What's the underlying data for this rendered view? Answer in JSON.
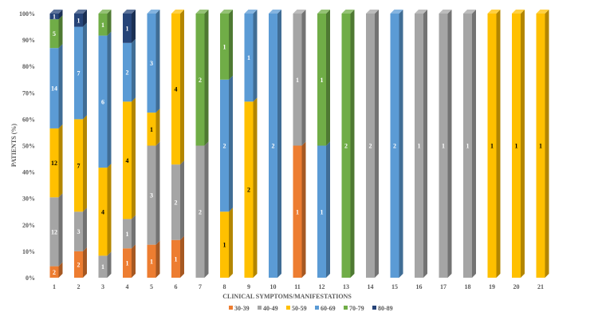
{
  "chart_data": {
    "type": "bar",
    "stacked": "percent",
    "style": "3d-column",
    "xlabel": "CLINICAL SYMPTOMS/MANIFESTATIONS",
    "ylabel": "PATIENTS (%)",
    "ylim": [
      0,
      100
    ],
    "yticks": [
      "0%",
      "10%",
      "20%",
      "30%",
      "40%",
      "50%",
      "60%",
      "70%",
      "80%",
      "90%",
      "100%"
    ],
    "grid": false,
    "legend_position": "bottom",
    "categories": [
      "1",
      "2",
      "3",
      "4",
      "5",
      "6",
      "7",
      "8",
      "9",
      "10",
      "11",
      "12",
      "13",
      "14",
      "15",
      "16",
      "17",
      "18",
      "19",
      "20",
      "21"
    ],
    "series": [
      {
        "name": "30-39",
        "color": "#ED7D31",
        "values": [
          2,
          2,
          0,
          1,
          1,
          1,
          0,
          0,
          0,
          0,
          1,
          0,
          0,
          0,
          0,
          0,
          0,
          0,
          0,
          0,
          0
        ]
      },
      {
        "name": "40-49",
        "color": "#A5A5A5",
        "values": [
          12,
          3,
          1,
          1,
          3,
          2,
          2,
          0,
          0,
          0,
          1,
          0,
          0,
          2,
          0,
          1,
          1,
          1,
          0,
          0,
          0
        ]
      },
      {
        "name": "50-59",
        "color": "#FFC000",
        "values": [
          12,
          7,
          4,
          4,
          1,
          4,
          0,
          1,
          2,
          0,
          0,
          0,
          0,
          0,
          0,
          0,
          0,
          0,
          1,
          1,
          1
        ]
      },
      {
        "name": "60-69",
        "color": "#5B9BD5",
        "values": [
          14,
          7,
          6,
          2,
          3,
          0,
          0,
          2,
          1,
          2,
          0,
          1,
          0,
          0,
          2,
          0,
          0,
          0,
          0,
          0,
          0
        ]
      },
      {
        "name": "70-79",
        "color": "#70AD47",
        "values": [
          5,
          0,
          1,
          0,
          0,
          0,
          2,
          1,
          0,
          0,
          0,
          1,
          2,
          0,
          0,
          0,
          0,
          0,
          0,
          0,
          0
        ]
      },
      {
        "name": "80-89",
        "color": "#264478",
        "values": [
          1,
          1,
          0,
          1,
          0,
          0,
          0,
          0,
          0,
          0,
          0,
          0,
          0,
          0,
          0,
          0,
          0,
          0,
          0,
          0,
          0
        ]
      }
    ]
  }
}
